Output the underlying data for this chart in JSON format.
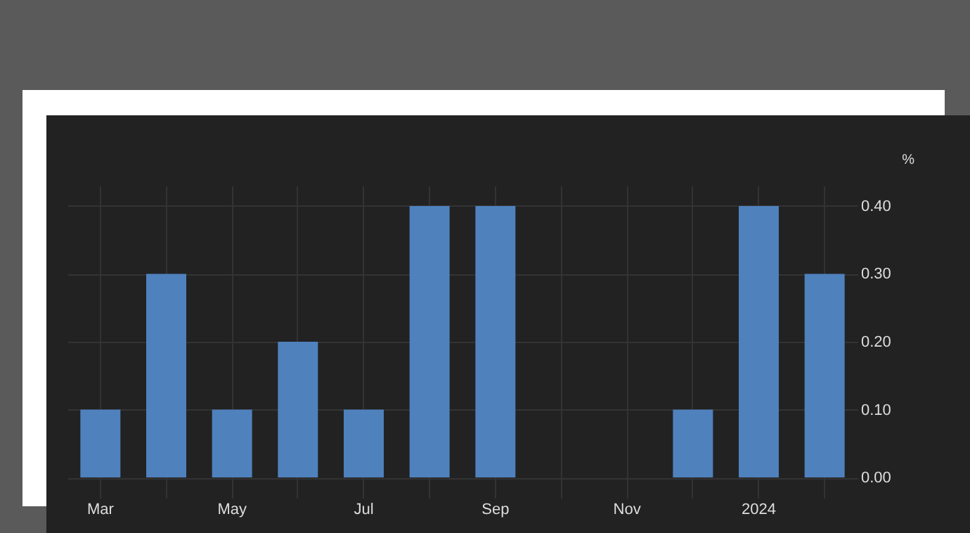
{
  "chart_data": {
    "type": "bar",
    "ylabel": "%",
    "categories": [
      "Mar",
      null,
      "May",
      null,
      "Jul",
      null,
      "Sep",
      null,
      "Nov",
      null,
      "2024",
      null
    ],
    "values": [
      0.1,
      0.3,
      0.1,
      0.2,
      0.1,
      0.4,
      0.4,
      0,
      0,
      0.1,
      0.4,
      0.3
    ],
    "color": "#4f81bd",
    "ylim": [
      -0.03,
      0.43
    ],
    "yticks": [
      {
        "value": 0,
        "label": "0.00"
      },
      {
        "value": 0.1,
        "label": "0.10"
      },
      {
        "value": 0.2,
        "label": "0.20"
      },
      {
        "value": 0.3,
        "label": "0.30"
      },
      {
        "value": 0.4,
        "label": "0.40"
      }
    ],
    "grid": true
  }
}
